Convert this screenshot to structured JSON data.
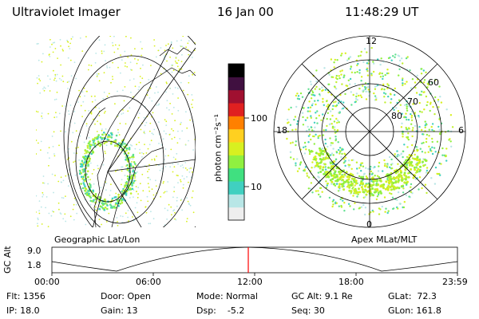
{
  "header": {
    "instrument": "Ultraviolet Imager",
    "date": "16 Jan 00",
    "time": "11:48:29 UT"
  },
  "left_panel": {
    "caption": "Geographic Lat/Lon"
  },
  "right_panel": {
    "caption": "Apex MLat/MLT",
    "mlt_labels": [
      "12",
      "18",
      "6",
      "0"
    ],
    "lat_labels": [
      "60",
      "70",
      "80"
    ]
  },
  "colorbar": {
    "unit_label": "photon cm⁻²s⁻¹",
    "ticks": [
      "100",
      "10"
    ],
    "colors": [
      "#eeeeee",
      "#b8e6e6",
      "#40d0c0",
      "#40e080",
      "#90f040",
      "#d8f020",
      "#ffd020",
      "#ff8000",
      "#e02020",
      "#a01030",
      "#401040",
      "#000000"
    ]
  },
  "timeline": {
    "axis_label": "GC Alt",
    "y_ticks": [
      "9.0",
      "1.8"
    ],
    "x_ticks": [
      "00:00",
      "06:00",
      "12:00",
      "18:00",
      "23:59"
    ],
    "marker_color": "#ff0000"
  },
  "footer": {
    "flt": "Flt: 1356",
    "ip": "IP: 18.0",
    "door": "Door: Open",
    "gain": "Gain: 13",
    "mode": "Mode: Normal",
    "dsp": "Dsp:    -5.2",
    "gcalt": "GC Alt: 9.1 Re",
    "seq": "Seq: 30",
    "glat": "GLat:  72.3",
    "glon": "GLon: 161.8"
  }
}
